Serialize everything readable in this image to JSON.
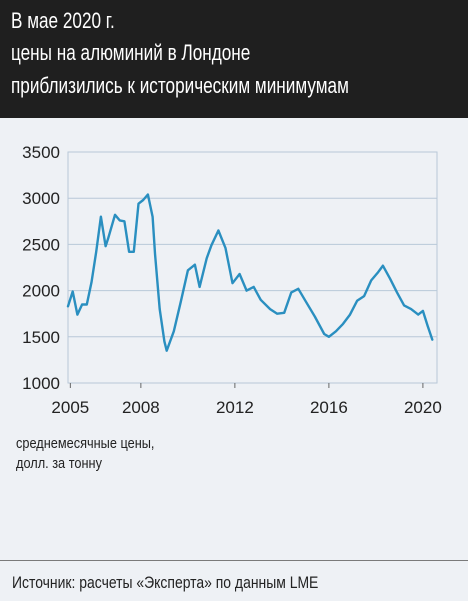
{
  "header": {
    "line1": "В мае 2020 г.",
    "line2": "цены на алюминий в Лондоне",
    "line3": "приблизились к историческим минимумам"
  },
  "unit_note": {
    "line1": "среднемесячные цены,",
    "line2": "долл. за тонну"
  },
  "source": "Источник: расчеты «Эксперта» по данным LME",
  "colors": {
    "header_bg": "#1f1f1f",
    "panel_bg": "#eef1f5",
    "line": "#2a8fc0",
    "grid": "#b8c8d8"
  },
  "chart_data": {
    "type": "line",
    "title": "В мае 2020 г. цены на алюминий в Лондоне приблизились к историческим минимумам",
    "ylabel": "среднемесячные цены, долл. за тонну",
    "ylim": [
      1000,
      3500
    ],
    "yticks": [
      1000,
      1500,
      2000,
      2500,
      3000,
      3500
    ],
    "xlim": [
      2004.9,
      2020.6
    ],
    "xticks": [
      2005,
      2008,
      2012,
      2016,
      2020
    ],
    "grid": true,
    "series": [
      {
        "x": [
          2004.9,
          2005.1,
          2005.3,
          2005.5,
          2005.7,
          2005.9,
          2006.1,
          2006.3,
          2006.5,
          2006.6,
          2006.9,
          2007.1,
          2007.3,
          2007.5,
          2007.7,
          2007.9,
          2008.1,
          2008.3,
          2008.5,
          2008.6,
          2008.8,
          2009.0,
          2009.1,
          2009.4,
          2009.7,
          2010.0,
          2010.3,
          2010.5,
          2010.8,
          2011.0,
          2011.3,
          2011.6,
          2011.9,
          2012.2,
          2012.5,
          2012.8,
          2013.1,
          2013.5,
          2013.8,
          2014.1,
          2014.4,
          2014.7,
          2015.0,
          2015.4,
          2015.8,
          2016.0,
          2016.3,
          2016.6,
          2016.9,
          2017.2,
          2017.5,
          2017.8,
          2018.1,
          2018.3,
          2018.6,
          2018.9,
          2019.2,
          2019.5,
          2019.8,
          2020.0,
          2020.2,
          2020.4
        ],
        "y": [
          1830,
          1990,
          1740,
          1850,
          1850,
          2090,
          2420,
          2800,
          2480,
          2560,
          2820,
          2760,
          2750,
          2420,
          2420,
          2940,
          2980,
          3040,
          2800,
          2400,
          1800,
          1450,
          1350,
          1560,
          1880,
          2220,
          2280,
          2040,
          2350,
          2490,
          2650,
          2460,
          2080,
          2180,
          2000,
          2040,
          1900,
          1800,
          1750,
          1760,
          1980,
          2020,
          1890,
          1720,
          1530,
          1500,
          1560,
          1640,
          1740,
          1890,
          1940,
          2110,
          2200,
          2270,
          2130,
          1980,
          1840,
          1800,
          1740,
          1780,
          1620,
          1470
        ]
      }
    ]
  }
}
